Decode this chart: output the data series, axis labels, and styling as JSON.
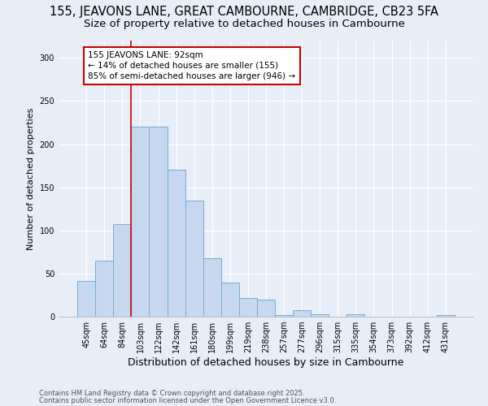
{
  "title": "155, JEAVONS LANE, GREAT CAMBOURNE, CAMBRIDGE, CB23 5FA",
  "subtitle": "Size of property relative to detached houses in Cambourne",
  "xlabel": "Distribution of detached houses by size in Cambourne",
  "ylabel": "Number of detached properties",
  "categories": [
    "45sqm",
    "64sqm",
    "84sqm",
    "103sqm",
    "122sqm",
    "142sqm",
    "161sqm",
    "180sqm",
    "199sqm",
    "219sqm",
    "238sqm",
    "257sqm",
    "277sqm",
    "296sqm",
    "315sqm",
    "335sqm",
    "354sqm",
    "373sqm",
    "392sqm",
    "412sqm",
    "431sqm"
  ],
  "values": [
    41,
    65,
    107,
    220,
    220,
    170,
    135,
    68,
    40,
    22,
    20,
    2,
    8,
    3,
    0,
    3,
    0,
    0,
    0,
    0,
    2
  ],
  "bar_color": "#c5d8ef",
  "bar_edge_color": "#7aadd4",
  "vline_x": 2.5,
  "vline_color": "#cc0000",
  "annotation_text": "155 JEAVONS LANE: 92sqm\n← 14% of detached houses are smaller (155)\n85% of semi-detached houses are larger (946) →",
  "annotation_box_color": "white",
  "annotation_box_edge_color": "#cc0000",
  "ylim": [
    0,
    320
  ],
  "yticks": [
    0,
    50,
    100,
    150,
    200,
    250,
    300
  ],
  "footnote1": "Contains HM Land Registry data © Crown copyright and database right 2025.",
  "footnote2": "Contains public sector information licensed under the Open Government Licence v3.0.",
  "background_color": "#e8eef7",
  "grid_color": "#ffffff",
  "title_fontsize": 10.5,
  "subtitle_fontsize": 9.5,
  "ylabel_fontsize": 8,
  "xlabel_fontsize": 9,
  "tick_fontsize": 7,
  "footnote_fontsize": 6,
  "annotation_fontsize": 7.5
}
